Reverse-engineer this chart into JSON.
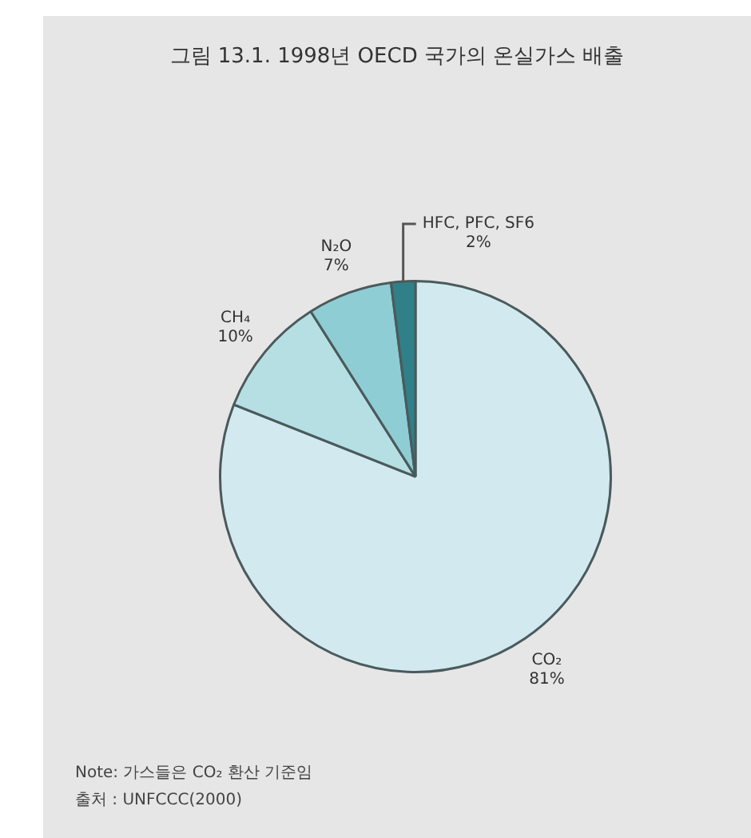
{
  "chart_data": {
    "type": "pie",
    "title": "그림 13.1.  1998년 OECD 국가의 온실가스 배출",
    "categories": [
      "CO₂",
      "CH₄",
      "N₂O",
      "HFC, PFC, SF6"
    ],
    "values": [
      81,
      10,
      7,
      2
    ],
    "value_labels": [
      "81%",
      "10%",
      "7%",
      "2%"
    ],
    "colors": [
      "#d2eaef",
      "#b6dfe4",
      "#8fcdd4",
      "#2f8088"
    ],
    "legend": false,
    "annotations": [
      "Note:  가스들은 CO₂ 환산 기준임",
      "출처 :  UNFCCC(2000)"
    ]
  }
}
